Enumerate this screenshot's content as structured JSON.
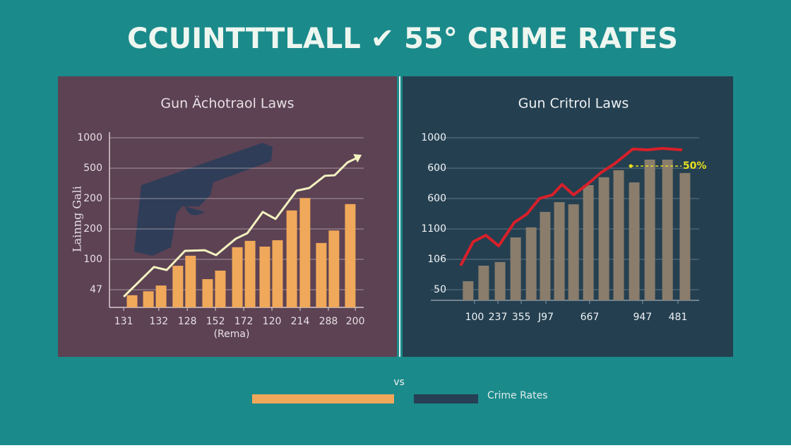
{
  "header": {
    "title": "CCUINTTTLALL ✔ 55° CRIME RATES"
  },
  "chart_data": [
    {
      "type": "combo",
      "title": "Gun Ächotraol Laws",
      "y_label": "Lainng Gali",
      "x_label": "(Rema)",
      "xlim": [
        0,
        100
      ],
      "ylim": [
        0,
        6
      ],
      "yticks": [
        {
          "value": 0.58,
          "label": "47"
        },
        {
          "value": 1.58,
          "label": "100"
        },
        {
          "value": 2.58,
          "label": "200"
        },
        {
          "value": 3.58,
          "label": "200"
        },
        {
          "value": 4.58,
          "label": "500"
        },
        {
          "value": 5.58,
          "label": "1000"
        }
      ],
      "xticks": [
        {
          "value": 5.6,
          "label": "131"
        },
        {
          "value": 19.4,
          "label": "132"
        },
        {
          "value": 30.6,
          "label": "128"
        },
        {
          "value": 41.7,
          "label": "152"
        },
        {
          "value": 52.8,
          "label": "172"
        },
        {
          "value": 63.9,
          "label": "120"
        },
        {
          "value": 75,
          "label": "214"
        },
        {
          "value": 86.1,
          "label": "288"
        },
        {
          "value": 96.7,
          "label": "200"
        }
      ],
      "bars": {
        "color": "#f0a85a",
        "x": [
          8.9,
          15.3,
          20.3,
          26.9,
          31.9,
          38.6,
          43.6,
          50.3,
          55.3,
          61.1,
          66.1,
          71.7,
          76.9,
          83.3,
          88.3,
          94.7
        ],
        "values": [
          0.4,
          0.53,
          0.72,
          1.37,
          1.7,
          0.93,
          1.21,
          1.98,
          2.19,
          2.0,
          2.21,
          3.19,
          3.6,
          2.12,
          2.53,
          3.4
        ]
      },
      "line": {
        "color": "#f4f2c0",
        "x": [
          5.6,
          17.5,
          22.5,
          29.7,
          37.5,
          41.9,
          49.7,
          54.2,
          60.3,
          65.3,
          73.6,
          78.6,
          84.7,
          88.6,
          93.6,
          98.1
        ],
        "values": [
          0.35,
          1.33,
          1.23,
          1.86,
          1.88,
          1.72,
          2.26,
          2.44,
          3.14,
          2.91,
          3.84,
          3.93,
          4.33,
          4.35,
          4.77,
          4.95
        ]
      }
    },
    {
      "type": "combo",
      "title": "Gun Critrol Laws",
      "xlim": [
        0,
        100
      ],
      "ylim": [
        0,
        6
      ],
      "yticks": [
        {
          "value": 0.35,
          "label": "50"
        },
        {
          "value": 1.35,
          "label": "106"
        },
        {
          "value": 2.35,
          "label": "1100"
        },
        {
          "value": 3.35,
          "label": "600"
        },
        {
          "value": 4.35,
          "label": "600"
        },
        {
          "value": 5.35,
          "label": "1000"
        }
      ],
      "xticks": [
        {
          "value": 16.3,
          "label": "100"
        },
        {
          "value": 25,
          "label": "237"
        },
        {
          "value": 33.7,
          "label": "355"
        },
        {
          "value": 42.9,
          "label": "J97"
        },
        {
          "value": 59.2,
          "label": "667"
        },
        {
          "value": 78.9,
          "label": "947"
        },
        {
          "value": 92.1,
          "label": "481"
        }
      ],
      "bars": {
        "color": "#8a7d6c",
        "x": [
          13.9,
          19.7,
          25.8,
          31.6,
          37.4,
          42.6,
          47.9,
          53.2,
          58.7,
          64.5,
          70,
          75.8,
          81.6,
          88.2,
          94.7
        ],
        "values": [
          0.63,
          1.14,
          1.26,
          2.07,
          2.4,
          2.91,
          3.23,
          3.16,
          3.79,
          4.05,
          4.28,
          3.88,
          4.63,
          4.63,
          4.19
        ]
      },
      "line": {
        "color": "#d8202a",
        "x": [
          11.1,
          15.8,
          20.5,
          25.3,
          31.1,
          35.8,
          40.5,
          45.3,
          48.9,
          53.2,
          59.2,
          63.2,
          68.4,
          75.3,
          80.5,
          86.3,
          93.7
        ],
        "values": [
          1.14,
          1.93,
          2.14,
          1.79,
          2.56,
          2.84,
          3.35,
          3.47,
          3.81,
          3.47,
          3.88,
          4.19,
          4.49,
          4.98,
          4.95,
          5.0,
          4.95
        ]
      },
      "reference": {
        "label": "50%",
        "color": "#e8e020",
        "value": 4.42,
        "x": [
          74.5,
          93.4
        ]
      }
    }
  ],
  "legend": {
    "separator": "vs",
    "label": "Crime Rates",
    "colors": [
      "#f0a85a",
      "#263f55"
    ]
  }
}
